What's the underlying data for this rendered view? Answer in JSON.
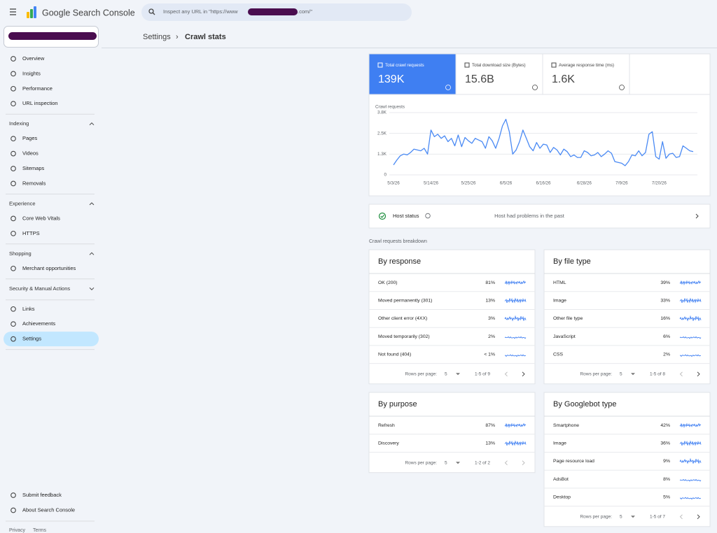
{
  "app": {
    "product": "Google Search Console",
    "search_prefix": "Inspect any URL in \"https://www",
    "search_suffix": ".com/\""
  },
  "breadcrumb": [
    "Settings",
    "Crawl stats"
  ],
  "sidebar": {
    "groups": [
      {
        "items": [
          "Overview",
          "Insights",
          "Performance",
          "URL inspection"
        ]
      },
      {
        "title": "Indexing",
        "items": [
          "Pages",
          "Videos",
          "Sitemaps",
          "Removals"
        ]
      },
      {
        "title": "Experience",
        "items": [
          "Core Web Vitals",
          "HTTPS"
        ]
      },
      {
        "title": "Shopping",
        "items": [
          "Merchant opportunities"
        ]
      },
      {
        "title": "Security & Manual Actions"
      },
      {
        "items": [
          "Links",
          "Achievements",
          "Settings"
        ]
      }
    ],
    "footer_items": [
      "Submit feedback",
      "About Search Console"
    ],
    "links": [
      "Privacy",
      "Terms"
    ]
  },
  "metrics": [
    {
      "label": "Total crawl requests",
      "value": "139K"
    },
    {
      "label": "Total download size (Bytes)",
      "value": "15.6B"
    },
    {
      "label": "Average response time (ms)",
      "value": "1.6K"
    }
  ],
  "chart_data": {
    "type": "line",
    "y_label": "Crawl requests",
    "categories": [
      "5/3/26",
      null,
      null,
      null,
      null,
      null,
      null,
      null,
      null,
      null,
      null,
      "5/14/26",
      null,
      null,
      null,
      null,
      null,
      null,
      null,
      null,
      null,
      null,
      "5/25/26",
      null,
      null,
      null,
      null,
      null,
      null,
      null,
      null,
      null,
      null,
      "6/5/26",
      null,
      null,
      null,
      null,
      null,
      null,
      null,
      null,
      null,
      null,
      "6/16/26",
      null,
      null,
      null,
      null,
      null,
      null,
      null,
      null,
      null,
      null,
      null,
      "6/28/26",
      null,
      null,
      null,
      null,
      null,
      null,
      null,
      null,
      null,
      null,
      "7/9/26",
      null,
      null,
      null,
      null,
      null,
      null,
      null,
      null,
      null,
      null,
      "7/20/26",
      null,
      null,
      null,
      null,
      null,
      null,
      null,
      null,
      null,
      null
    ],
    "series": [
      {
        "color": "#4a8af4",
        "values": [
          600,
          900,
          1150,
          1250,
          1200,
          1350,
          1550,
          1500,
          1450,
          1600,
          1250,
          2700,
          2300,
          2450,
          2200,
          2350,
          2000,
          2200,
          1750,
          2400,
          1700,
          2250,
          2050,
          1900,
          2200,
          2100,
          2000,
          1600,
          2300,
          2050,
          1600,
          2200,
          2950,
          3350,
          2600,
          1250,
          1500,
          2000,
          2700,
          2200,
          1700,
          1450,
          1950,
          1600,
          1850,
          1800,
          1350,
          1650,
          1500,
          1200,
          1550,
          1400,
          1100,
          1200,
          1050,
          1050,
          1450,
          1350,
          1150,
          1200,
          1350,
          1100,
          1250,
          1450,
          1300,
          800,
          750,
          700,
          550,
          800,
          1200,
          1150,
          1450,
          1150,
          1350,
          2450,
          2600,
          1100,
          950,
          2000,
          1000,
          1250,
          1300,
          1050,
          1100,
          1750,
          1600,
          1450,
          1400
        ]
      }
    ],
    "ylim": [
      0,
      3750
    ],
    "yticks": [
      0,
      {
        "value": 1250,
        "label": "1.3K"
      },
      {
        "value": 2500,
        "label": "2.5K"
      },
      {
        "value": 3750,
        "label": "3.8K"
      }
    ],
    "grid": true
  },
  "host_status": {
    "label": "Host status",
    "message": "Host had problems in the past"
  },
  "breakdown_title": "Crawl requests breakdown",
  "tables": [
    {
      "title": "By response",
      "rows": [
        [
          "OK (200)",
          "81%"
        ],
        [
          "Moved permanently (301)",
          "13%"
        ],
        [
          "Other client error (4XX)",
          "3%"
        ],
        [
          "Moved temporarily (302)",
          "2%"
        ],
        [
          "Not found (404)",
          "< 1%"
        ]
      ],
      "rows_per_page_label": "Rows per page:",
      "rows_per_page": "5",
      "range": "1-5 of 9"
    },
    {
      "title": "By file type",
      "rows": [
        [
          "HTML",
          "39%"
        ],
        [
          "Image",
          "33%"
        ],
        [
          "Other file type",
          "16%"
        ],
        [
          "JavaScript",
          "6%"
        ],
        [
          "CSS",
          "2%"
        ]
      ],
      "rows_per_page_label": "Rows per page:",
      "rows_per_page": "5",
      "range": "1-5 of 8"
    },
    {
      "title": "By purpose",
      "rows": [
        [
          "Refresh",
          "87%"
        ],
        [
          "Discovery",
          "13%"
        ]
      ],
      "rows_per_page_label": "Rows per page:",
      "rows_per_page": "5",
      "range": "1-2 of 2"
    },
    {
      "title": "By Googlebot type",
      "rows": [
        [
          "Smartphone",
          "42%"
        ],
        [
          "Image",
          "36%"
        ],
        [
          "Page resource load",
          "9%"
        ],
        [
          "AdsBot",
          "8%"
        ],
        [
          "Desktop",
          "5%"
        ]
      ],
      "rows_per_page_label": "Rows per page:",
      "rows_per_page": "5",
      "range": "1-5 of 7"
    }
  ]
}
